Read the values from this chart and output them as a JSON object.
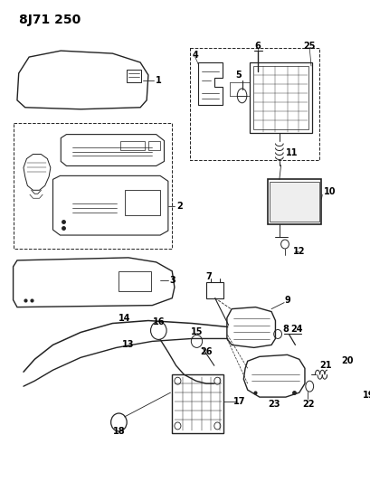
{
  "title": "8J71 250",
  "bg_color": "#ffffff",
  "title_fontsize": 10,
  "fig_width": 4.1,
  "fig_height": 5.33,
  "dpi": 100,
  "lc": "#222222"
}
